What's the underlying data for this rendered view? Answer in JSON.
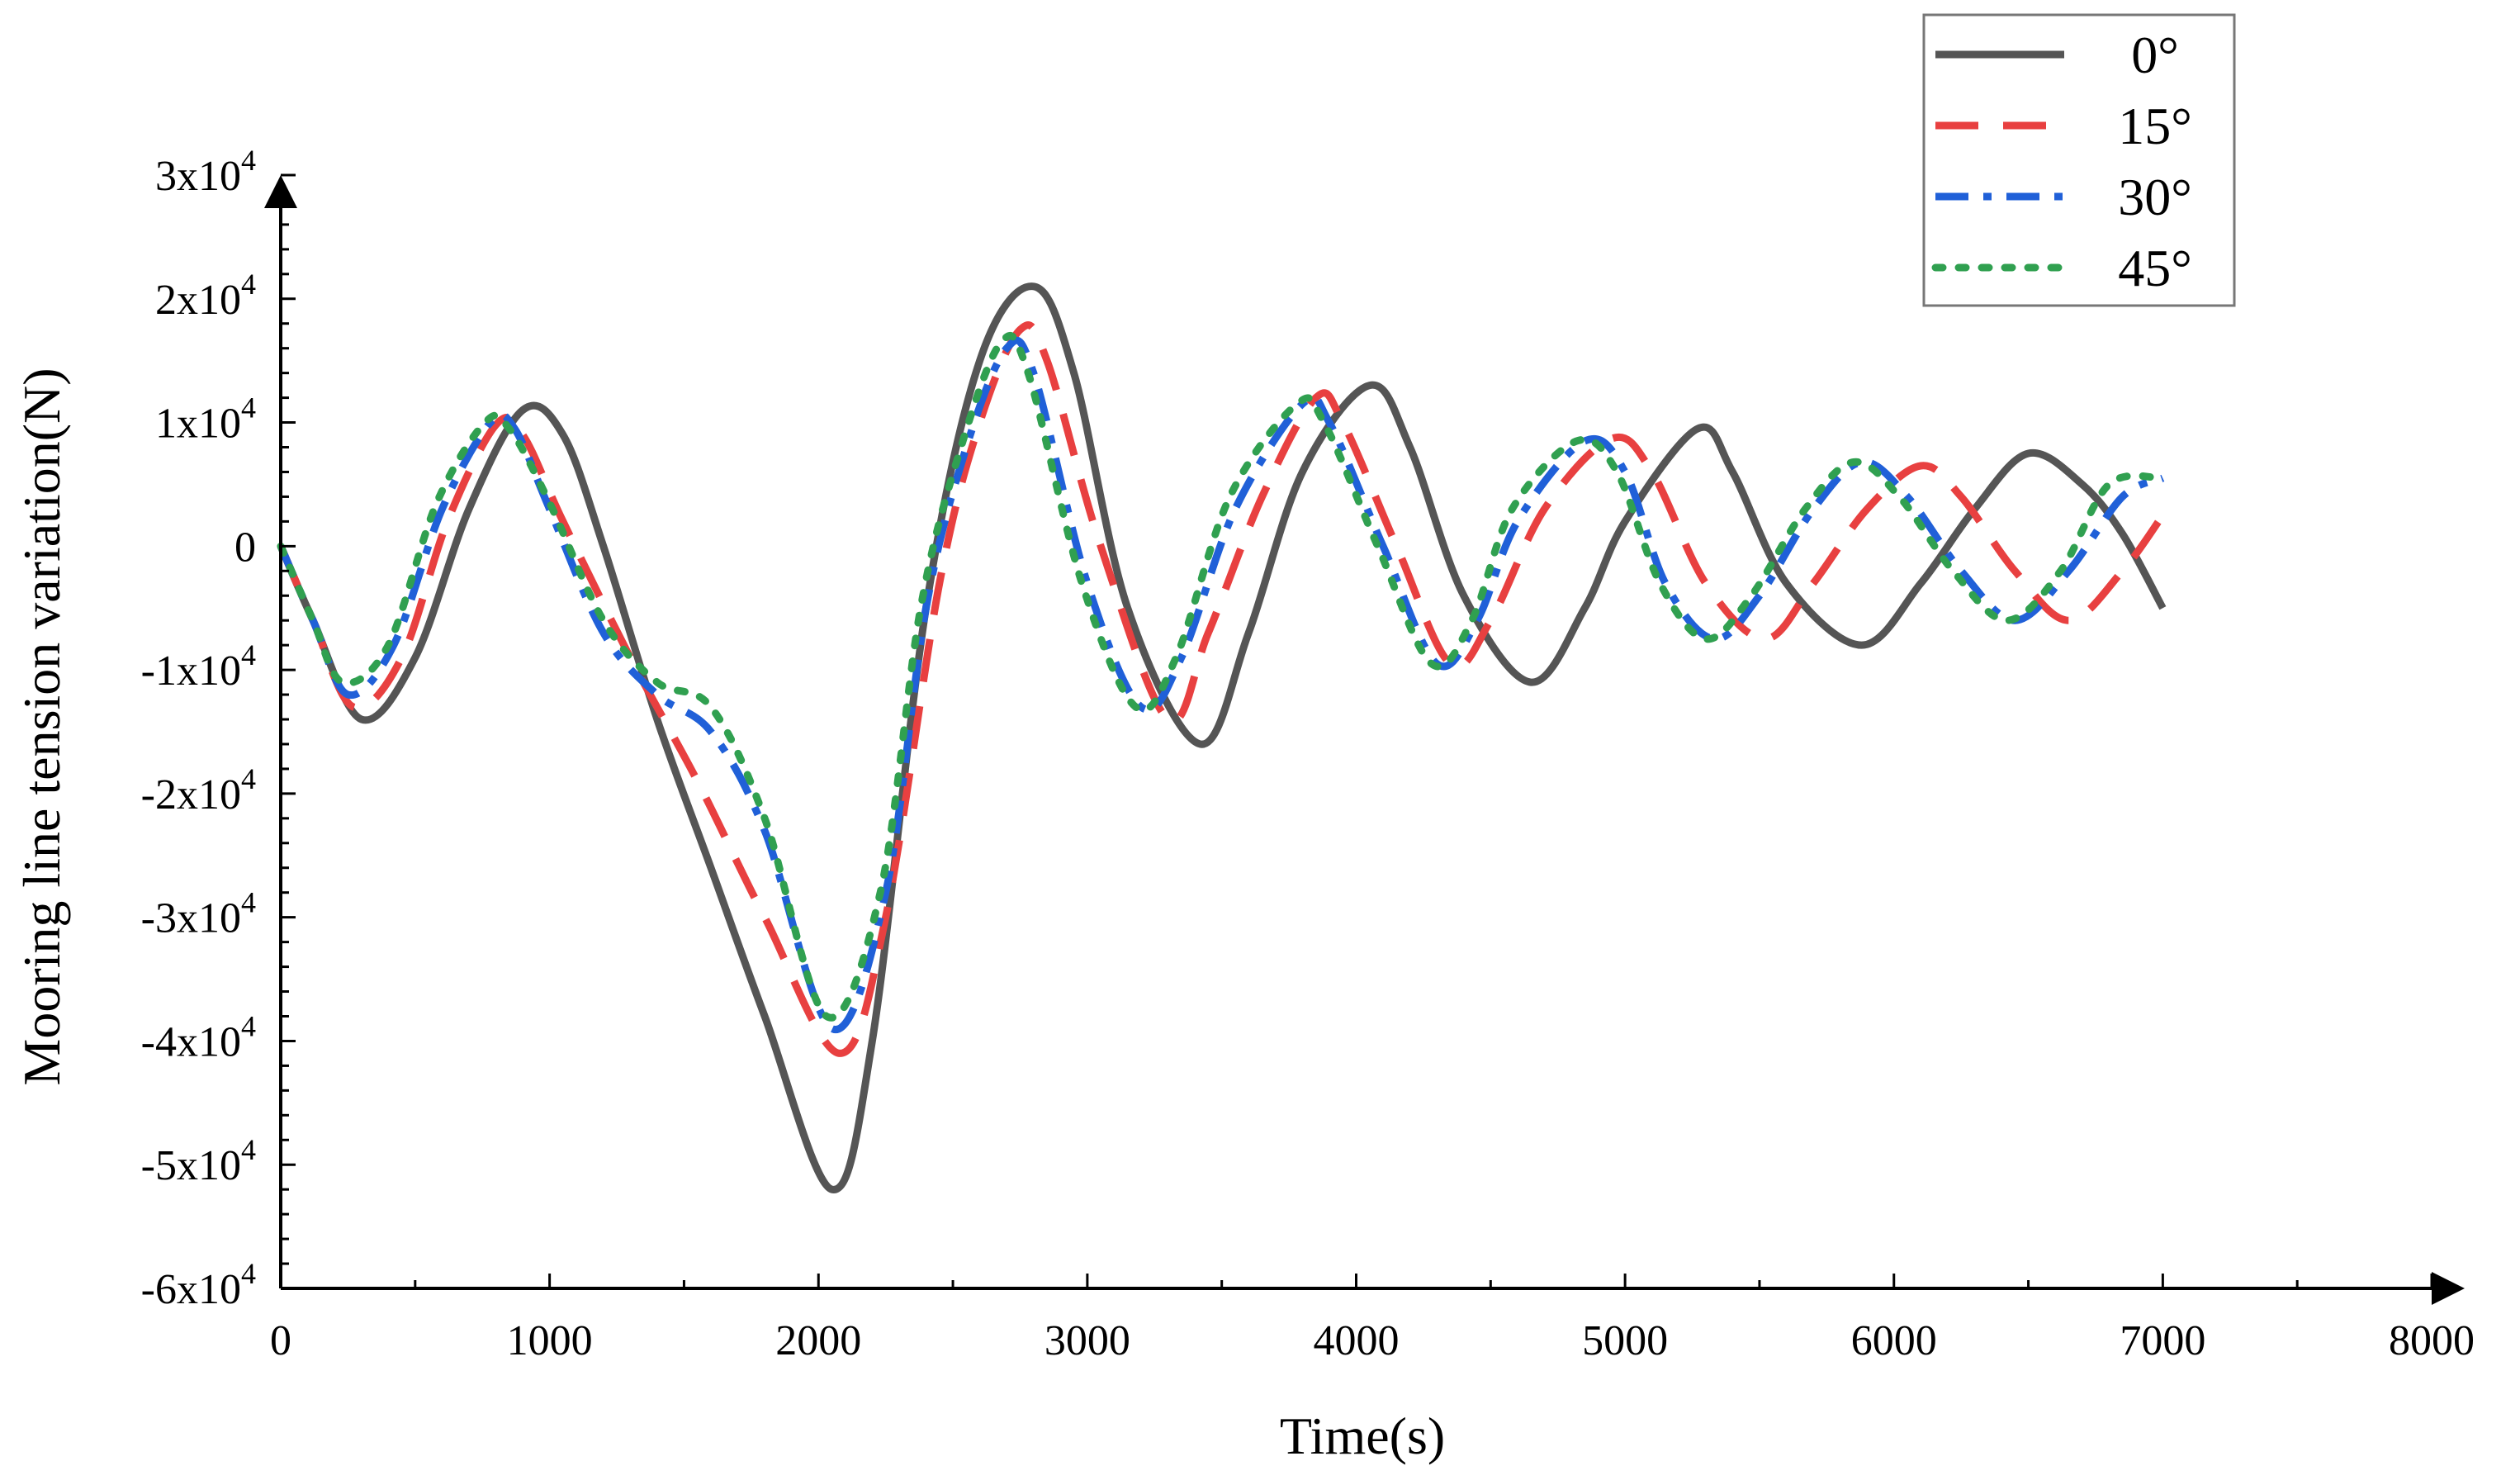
{
  "chart_data": {
    "type": "line",
    "xlabel": "Time(s)",
    "ylabel": "Mooring line tension variation(N)",
    "xlim": [
      0,
      8000
    ],
    "ylim": [
      -60000,
      30000
    ],
    "x_ticks": [
      0,
      1000,
      2000,
      3000,
      4000,
      5000,
      6000,
      7000,
      8000
    ],
    "x_tick_labels": [
      "0",
      "1000",
      "2000",
      "3000",
      "4000",
      "5000",
      "6000",
      "7000",
      "8000"
    ],
    "y_ticks": [
      -60000,
      -50000,
      -40000,
      -30000,
      -20000,
      -10000,
      0,
      10000,
      20000,
      30000
    ],
    "y_tick_labels": [
      {
        "mantissa": "-6x10",
        "exp": "4"
      },
      {
        "mantissa": "-5x10",
        "exp": "4"
      },
      {
        "mantissa": "-4x10",
        "exp": "4"
      },
      {
        "mantissa": "-3x10",
        "exp": "4"
      },
      {
        "mantissa": "-2x10",
        "exp": "4"
      },
      {
        "mantissa": "-1x10",
        "exp": "4"
      },
      {
        "mantissa": "0",
        "exp": ""
      },
      {
        "mantissa": "1x10",
        "exp": "4"
      },
      {
        "mantissa": "2x10",
        "exp": "4"
      },
      {
        "mantissa": "3x10",
        "exp": "4"
      }
    ],
    "legend_position": "top-right",
    "grid": false,
    "series": [
      {
        "name": "0°",
        "color": "#555555",
        "style": "solid",
        "points": [
          [
            0,
            0
          ],
          [
            120,
            -6000
          ],
          [
            300,
            -14000
          ],
          [
            500,
            -9000
          ],
          [
            700,
            3000
          ],
          [
            900,
            11000
          ],
          [
            1050,
            9000
          ],
          [
            1200,
            0
          ],
          [
            1400,
            -14000
          ],
          [
            1600,
            -26000
          ],
          [
            1800,
            -38000
          ],
          [
            2050,
            -52000
          ],
          [
            2200,
            -40000
          ],
          [
            2400,
            -5000
          ],
          [
            2600,
            15000
          ],
          [
            2800,
            21000
          ],
          [
            2950,
            14000
          ],
          [
            3150,
            -5000
          ],
          [
            3420,
            -16000
          ],
          [
            3600,
            -7000
          ],
          [
            3800,
            6000
          ],
          [
            4050,
            13000
          ],
          [
            4200,
            8000
          ],
          [
            4400,
            -4000
          ],
          [
            4650,
            -11000
          ],
          [
            4850,
            -5000
          ],
          [
            5000,
            2000
          ],
          [
            5270,
            9500
          ],
          [
            5400,
            6000
          ],
          [
            5600,
            -3000
          ],
          [
            5880,
            -8000
          ],
          [
            6100,
            -3000
          ],
          [
            6300,
            3000
          ],
          [
            6500,
            7500
          ],
          [
            6700,
            5000
          ],
          [
            6850,
            1000
          ],
          [
            7000,
            -5000
          ]
        ]
      },
      {
        "name": "15°",
        "color": "#e84040",
        "style": "dashed",
        "points": [
          [
            0,
            0
          ],
          [
            120,
            -6000
          ],
          [
            270,
            -13000
          ],
          [
            450,
            -9000
          ],
          [
            620,
            2000
          ],
          [
            800,
            9800
          ],
          [
            900,
            9000
          ],
          [
            1050,
            2000
          ],
          [
            1300,
            -9000
          ],
          [
            1550,
            -19000
          ],
          [
            1800,
            -30000
          ],
          [
            2080,
            -41000
          ],
          [
            2250,
            -30000
          ],
          [
            2450,
            -3000
          ],
          [
            2600,
            10000
          ],
          [
            2750,
            17500
          ],
          [
            2850,
            15000
          ],
          [
            3050,
            0
          ],
          [
            3300,
            -14000
          ],
          [
            3450,
            -7000
          ],
          [
            3650,
            4000
          ],
          [
            3850,
            12000
          ],
          [
            3950,
            10000
          ],
          [
            4150,
            0
          ],
          [
            4350,
            -9500
          ],
          [
            4500,
            -6000
          ],
          [
            4700,
            3000
          ],
          [
            4950,
            8700
          ],
          [
            5100,
            6000
          ],
          [
            5300,
            -3000
          ],
          [
            5520,
            -7500
          ],
          [
            5700,
            -3000
          ],
          [
            5900,
            3000
          ],
          [
            6100,
            6500
          ],
          [
            6250,
            4000
          ],
          [
            6450,
            -2000
          ],
          [
            6650,
            -6000
          ],
          [
            6850,
            -2000
          ],
          [
            7000,
            2500
          ]
        ]
      },
      {
        "name": "30°",
        "color": "#2060d8",
        "style": "dashdot",
        "points": [
          [
            0,
            0
          ],
          [
            120,
            -6000
          ],
          [
            250,
            -12000
          ],
          [
            420,
            -8000
          ],
          [
            600,
            3000
          ],
          [
            780,
            10000
          ],
          [
            870,
            9500
          ],
          [
            1000,
            3000
          ],
          [
            1200,
            -7000
          ],
          [
            1400,
            -12000
          ],
          [
            1600,
            -15000
          ],
          [
            1800,
            -23000
          ],
          [
            2050,
            -39000
          ],
          [
            2250,
            -28000
          ],
          [
            2400,
            -5000
          ],
          [
            2550,
            8000
          ],
          [
            2700,
            16000
          ],
          [
            2800,
            14000
          ],
          [
            3000,
            -3000
          ],
          [
            3200,
            -13000
          ],
          [
            3350,
            -9000
          ],
          [
            3550,
            3000
          ],
          [
            3800,
            11500
          ],
          [
            3900,
            10000
          ],
          [
            4100,
            0
          ],
          [
            4300,
            -9500
          ],
          [
            4450,
            -6000
          ],
          [
            4600,
            2000
          ],
          [
            4850,
            8500
          ],
          [
            5000,
            6000
          ],
          [
            5150,
            -3000
          ],
          [
            5330,
            -7500
          ],
          [
            5500,
            -4000
          ],
          [
            5700,
            3000
          ],
          [
            5880,
            6800
          ],
          [
            6050,
            4000
          ],
          [
            6250,
            -2000
          ],
          [
            6450,
            -6000
          ],
          [
            6650,
            -2000
          ],
          [
            6850,
            4000
          ],
          [
            7000,
            5500
          ]
        ]
      },
      {
        "name": "45°",
        "color": "#30a050",
        "style": "dotted",
        "points": [
          [
            0,
            0
          ],
          [
            120,
            -6000
          ],
          [
            230,
            -11000
          ],
          [
            400,
            -8000
          ],
          [
            580,
            3500
          ],
          [
            760,
            10000
          ],
          [
            850,
            9500
          ],
          [
            1000,
            3500
          ],
          [
            1200,
            -6000
          ],
          [
            1400,
            -11000
          ],
          [
            1600,
            -13000
          ],
          [
            1800,
            -22000
          ],
          [
            2030,
            -38000
          ],
          [
            2230,
            -28000
          ],
          [
            2380,
            -5000
          ],
          [
            2530,
            8000
          ],
          [
            2680,
            16500
          ],
          [
            2780,
            14000
          ],
          [
            2980,
            -3000
          ],
          [
            3180,
            -13000
          ],
          [
            3330,
            -9000
          ],
          [
            3530,
            4000
          ],
          [
            3780,
            11500
          ],
          [
            3880,
            10000
          ],
          [
            4080,
            0
          ],
          [
            4280,
            -9500
          ],
          [
            4430,
            -6000
          ],
          [
            4580,
            3000
          ],
          [
            4820,
            8500
          ],
          [
            4970,
            6000
          ],
          [
            5130,
            -3000
          ],
          [
            5300,
            -7500
          ],
          [
            5470,
            -4000
          ],
          [
            5670,
            3000
          ],
          [
            5850,
            6800
          ],
          [
            6020,
            4000
          ],
          [
            6220,
            -2000
          ],
          [
            6420,
            -6000
          ],
          [
            6620,
            -2000
          ],
          [
            6800,
            5000
          ],
          [
            7000,
            5500
          ]
        ]
      }
    ]
  }
}
